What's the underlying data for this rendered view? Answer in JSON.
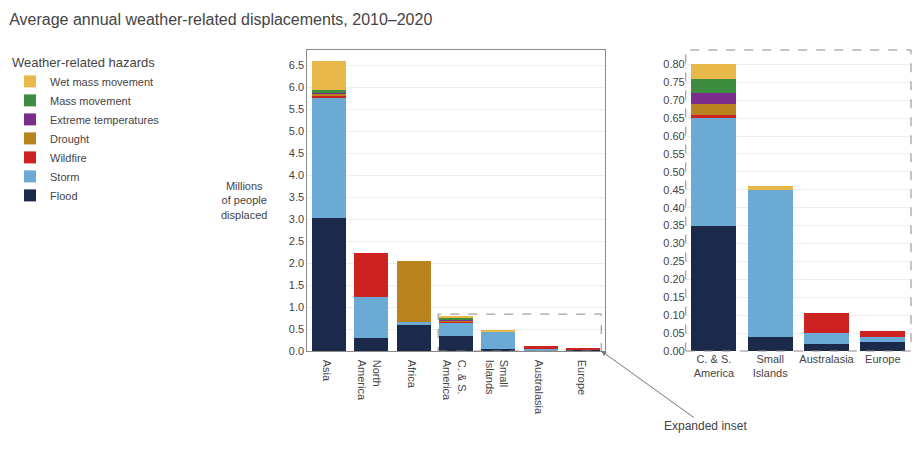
{
  "chart_data": [
    {
      "type": "bar",
      "title": "Average annual weather-related displacements, 2010–2020",
      "ylabel": "Millions\nof people\ndisplaced",
      "categories": [
        "Asia",
        "North\nAmerica",
        "Africa",
        "C. & S.\nAmerica",
        "Small\nIslands",
        "Australasia",
        "Europe"
      ],
      "series": [
        {
          "name": "Flood",
          "color": "#1b2a4a",
          "values": [
            3.02,
            0.3,
            0.6,
            0.35,
            0.04,
            0.02,
            0.025
          ]
        },
        {
          "name": "Storm",
          "color": "#6aaad4",
          "values": [
            2.76,
            0.92,
            0.05,
            0.3,
            0.41,
            0.03,
            0.015
          ]
        },
        {
          "name": "Wildfire",
          "color": "#cc2222",
          "values": [
            0.02,
            1.0,
            0.0,
            0.01,
            0.0,
            0.055,
            0.015
          ]
        },
        {
          "name": "Drought",
          "color": "#b8821e",
          "values": [
            0.05,
            0.0,
            1.4,
            0.03,
            0.0,
            0.0,
            0.0
          ]
        },
        {
          "name": "Extreme temperatures",
          "color": "#7b2d8b",
          "values": [
            0.03,
            0.0,
            0.0,
            0.03,
            0.0,
            0.0,
            0.0
          ]
        },
        {
          "name": "Mass movement",
          "color": "#3d8c40",
          "values": [
            0.05,
            0.0,
            0.0,
            0.04,
            0.0,
            0.0,
            0.0
          ]
        },
        {
          "name": "Wet mass movement",
          "color": "#e8b84b",
          "values": [
            0.68,
            0.0,
            0.0,
            0.04,
            0.01,
            0.0,
            0.0
          ]
        }
      ],
      "stacked": true,
      "ylim": [
        0,
        6.85
      ],
      "yticks": [
        {
          "value": 0.0,
          "label": "0.0"
        },
        0.5,
        {
          "value": 1.0,
          "label": "1.0"
        },
        1.5,
        {
          "value": 2.0,
          "label": "2.0"
        },
        2.5,
        {
          "value": 3.0,
          "label": "3.0"
        },
        3.5,
        {
          "value": 4.0,
          "label": "4.0"
        },
        4.5,
        {
          "value": 5.0,
          "label": "5.0"
        },
        5.5,
        {
          "value": 6.0,
          "label": "6.0"
        },
        6.5
      ],
      "grid": true,
      "legend": "upper left",
      "legend_title": "Weather-related hazards"
    },
    {
      "type": "bar",
      "categories": [
        "C. & S.\nAmerica",
        "Small\nIslands",
        "Australasia",
        "Europe"
      ],
      "series": [
        {
          "name": "Flood",
          "color": "#1b2a4a",
          "values": [
            0.35,
            0.04,
            0.02,
            0.025
          ]
        },
        {
          "name": "Storm",
          "color": "#6aaad4",
          "values": [
            0.3,
            0.41,
            0.03,
            0.015
          ]
        },
        {
          "name": "Wildfire",
          "color": "#cc2222",
          "values": [
            0.01,
            0.0,
            0.055,
            0.015
          ]
        },
        {
          "name": "Drought",
          "color": "#b8821e",
          "values": [
            0.03,
            0.0,
            0.0,
            0.0
          ]
        },
        {
          "name": "Extreme temperatures",
          "color": "#7b2d8b",
          "values": [
            0.03,
            0.0,
            0.0,
            0.0
          ]
        },
        {
          "name": "Mass movement",
          "color": "#3d8c40",
          "values": [
            0.04,
            0.0,
            0.0,
            0.0
          ]
        },
        {
          "name": "Wet mass movement",
          "color": "#e8b84b",
          "values": [
            0.04,
            0.01,
            0.0,
            0.0
          ]
        }
      ],
      "stacked": true,
      "ylim": [
        0,
        0.84
      ],
      "yticks": [
        {
          "value": 0.0,
          "label": "0.00"
        },
        0.05,
        {
          "value": 0.1,
          "label": "0.10"
        },
        0.15,
        {
          "value": 0.2,
          "label": "0.20"
        },
        0.25,
        {
          "value": 0.3,
          "label": "0.30"
        },
        0.35,
        {
          "value": 0.4,
          "label": "0.40"
        },
        0.45,
        {
          "value": 0.5,
          "label": "0.50"
        },
        0.55,
        {
          "value": 0.6,
          "label": "0.60"
        },
        0.65,
        {
          "value": 0.7,
          "label": "0.70"
        },
        0.75,
        {
          "value": 0.8,
          "label": "0.80"
        }
      ],
      "grid": true,
      "annotations": [
        "Expanded inset"
      ]
    }
  ]
}
